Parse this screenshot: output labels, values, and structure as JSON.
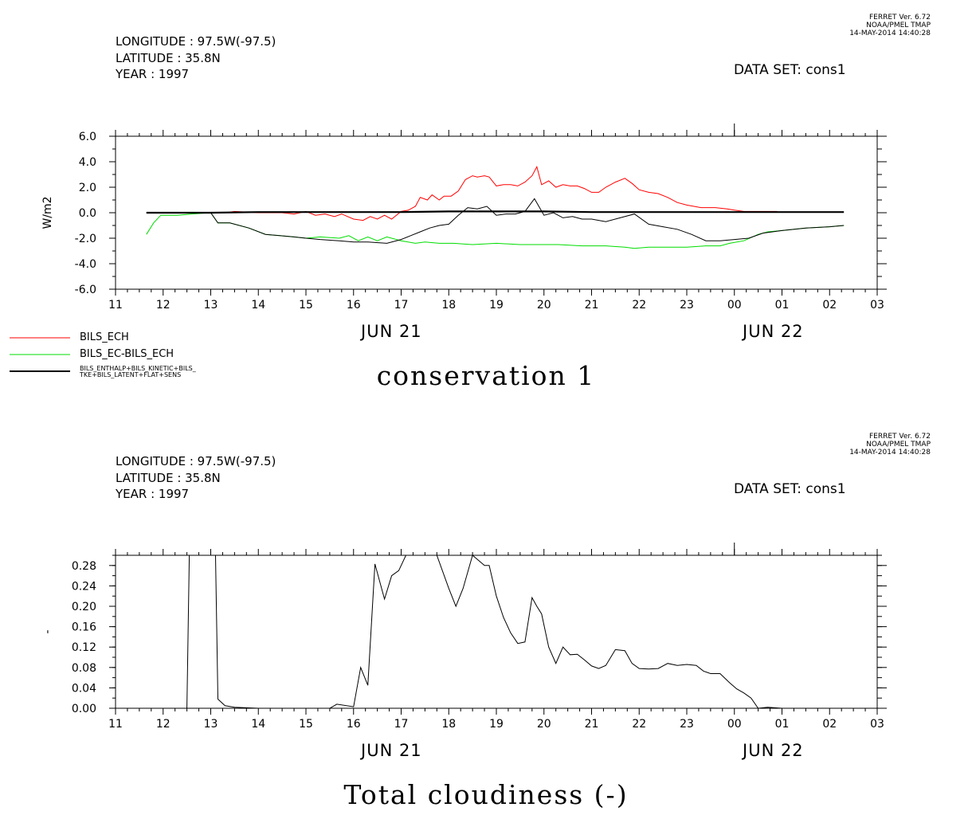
{
  "panels": [
    {
      "stamp": [
        "FERRET Ver. 6.72",
        "NOAA/PMEL TMAP",
        "14-MAY-2014 14:40:28"
      ],
      "header": [
        "LONGITUDE : 97.5W(-97.5)",
        "LATITUDE : 35.8N",
        "YEAR : 1997"
      ],
      "dataset": "DATA SET: cons1",
      "date_labels": [
        "JUN 21",
        "JUN 22"
      ],
      "title": "conservation 1"
    },
    {
      "stamp": [
        "FERRET Ver. 6.72",
        "NOAA/PMEL TMAP",
        "14-MAY-2014 14:40:28"
      ],
      "header": [
        "LONGITUDE : 97.5W(-97.5)",
        "LATITUDE : 35.8N",
        "YEAR : 1997"
      ],
      "dataset": "DATA SET: cons1",
      "date_labels": [
        "JUN 21",
        "JUN 22"
      ],
      "title": "Total cloudiness (-)"
    }
  ],
  "legend": [
    {
      "label": "BILS_ECH",
      "color": "#ff0000"
    },
    {
      "label": "BILS_EC-BILS_ECH",
      "color": "#00dd00"
    },
    {
      "label": "BILS_ENTHALP+BILS_KINETIC+BILS_\nTKE+BILS_LATENT+FLAT+SENS",
      "color": "#000000"
    }
  ],
  "chart_data": [
    {
      "type": "line",
      "xlabel": "",
      "ylabel": "W/m2",
      "x_tick_labels": [
        "11",
        "12",
        "13",
        "14",
        "15",
        "16",
        "17",
        "18",
        "19",
        "20",
        "21",
        "22",
        "23",
        "00",
        "01",
        "02",
        "03"
      ],
      "xlim": [
        11,
        27
      ],
      "ylim": [
        -6,
        6
      ],
      "y_ticks": [
        "6.0",
        "4.0",
        "2.0",
        "0.0",
        "-2.0",
        "-4.0",
        "-6.0"
      ],
      "y_tick_values": [
        6,
        4,
        2,
        0,
        -2,
        -4,
        -6
      ],
      "series": [
        {
          "name": "BILS_ECH",
          "color": "#ff0000",
          "x": [
            11.65,
            11.8,
            12,
            12.5,
            13,
            13.3,
            13.5,
            14,
            14.5,
            14.75,
            15,
            15.2,
            15.4,
            15.6,
            15.75,
            16,
            16.2,
            16.35,
            16.5,
            16.65,
            16.8,
            17,
            17.15,
            17.3,
            17.4,
            17.55,
            17.65,
            17.8,
            17.9,
            18.05,
            18.2,
            18.35,
            18.5,
            18.6,
            18.75,
            18.85,
            19,
            19.15,
            19.3,
            19.45,
            19.6,
            19.75,
            19.85,
            19.95,
            20.1,
            20.25,
            20.4,
            20.55,
            20.7,
            20.85,
            21,
            21.15,
            21.3,
            21.5,
            21.7,
            21.85,
            22,
            22.2,
            22.4,
            22.6,
            22.8,
            23,
            23.3,
            23.6,
            23.85,
            24,
            24.2,
            24.4,
            24.65,
            24.9
          ],
          "y": [
            0,
            0,
            0,
            0,
            0,
            0,
            0.1,
            0,
            0,
            -0.1,
            0.1,
            -0.2,
            -0.1,
            -0.3,
            -0.1,
            -0.5,
            -0.6,
            -0.3,
            -0.5,
            -0.2,
            -0.5,
            0.1,
            0.2,
            0.5,
            1.2,
            1.0,
            1.4,
            1.0,
            1.3,
            1.3,
            1.7,
            2.6,
            2.9,
            2.8,
            2.9,
            2.8,
            2.1,
            2.2,
            2.2,
            2.1,
            2.4,
            2.9,
            3.6,
            2.2,
            2.5,
            2.0,
            2.2,
            2.1,
            2.1,
            1.9,
            1.6,
            1.6,
            2.0,
            2.4,
            2.7,
            2.3,
            1.8,
            1.6,
            1.5,
            1.2,
            0.8,
            0.6,
            0.4,
            0.4,
            0.3,
            0.2,
            0.1,
            0.1,
            0.1,
            0.1
          ]
        },
        {
          "name": "BILS_EC-BILS_ECH",
          "color": "#00dd00",
          "x": [
            11.65,
            11.8,
            11.95,
            12.3,
            12.6,
            13,
            13.15,
            13.4,
            13.8,
            14.15,
            14.45,
            14.75,
            15,
            15.3,
            15.7,
            15.9,
            16.1,
            16.3,
            16.5,
            16.7,
            17,
            17.3,
            17.5,
            17.8,
            18.1,
            18.5,
            19,
            19.5,
            19.9,
            20.3,
            20.8,
            21.3,
            21.7,
            21.9,
            22.2,
            22.6,
            23.0,
            23.4,
            23.7,
            23.9,
            24.2,
            24.5,
            24.7,
            25.0,
            25.5,
            26.0,
            26.3
          ],
          "y": [
            -1.7,
            -0.8,
            -0.2,
            -0.2,
            -0.1,
            0,
            -0.8,
            -0.8,
            -1.2,
            -1.7,
            -1.8,
            -1.9,
            -2.0,
            -1.9,
            -2.0,
            -1.8,
            -2.2,
            -1.9,
            -2.2,
            -1.9,
            -2.2,
            -2.4,
            -2.3,
            -2.4,
            -2.4,
            -2.5,
            -2.4,
            -2.5,
            -2.5,
            -2.5,
            -2.6,
            -2.6,
            -2.7,
            -2.8,
            -2.7,
            -2.7,
            -2.7,
            -2.6,
            -2.6,
            -2.4,
            -2.2,
            -1.7,
            -1.5,
            -1.4,
            -1.2,
            -1.1,
            -1.0
          ]
        },
        {
          "name": "BILS_ENTHALP+BILS_KINETIC+BILS_\nTKE+BILS_LATENT+FLAT+SENS",
          "color": "#000000",
          "x": [
            11.65,
            12,
            12.5,
            13,
            13.15,
            13.4,
            13.8,
            14.15,
            14.45,
            14.75,
            15,
            15.3,
            15.7,
            16,
            16.3,
            16.7,
            17,
            17.2,
            17.4,
            17.6,
            17.8,
            18,
            18.2,
            18.4,
            18.6,
            18.8,
            19,
            19.2,
            19.4,
            19.6,
            19.8,
            20,
            20.2,
            20.4,
            20.6,
            20.8,
            21,
            21.3,
            21.6,
            21.9,
            22.2,
            22.5,
            22.8,
            23.1,
            23.4,
            23.7,
            24,
            24.3,
            24.6,
            25,
            25.5,
            26,
            26.3
          ],
          "y": [
            0,
            0,
            0,
            0,
            -0.8,
            -0.8,
            -1.2,
            -1.7,
            -1.8,
            -1.9,
            -2.0,
            -2.1,
            -2.2,
            -2.3,
            -2.3,
            -2.4,
            -2.1,
            -1.8,
            -1.5,
            -1.2,
            -1.0,
            -0.9,
            -0.2,
            0.4,
            0.3,
            0.5,
            -0.2,
            -0.1,
            -0.1,
            0.1,
            1.1,
            -0.2,
            0.0,
            -0.4,
            -0.3,
            -0.5,
            -0.5,
            -0.7,
            -0.4,
            -0.1,
            -0.9,
            -1.1,
            -1.3,
            -1.7,
            -2.2,
            -2.2,
            -2.1,
            -2.0,
            -1.6,
            -1.4,
            -1.2,
            -1.1,
            -1.0
          ]
        },
        {
          "name": "",
          "color": "#000000",
          "x": [
            11.65,
            13,
            14,
            15,
            16,
            17,
            18,
            19,
            20,
            21,
            22,
            23,
            24,
            25,
            26,
            26.3
          ],
          "y": [
            0,
            0,
            0.05,
            0.05,
            0.05,
            0.05,
            0.1,
            0.1,
            0.1,
            0.05,
            0.05,
            0.05,
            0.05,
            0.05,
            0.05,
            0.05
          ]
        }
      ]
    },
    {
      "type": "line",
      "xlabel": "",
      "ylabel": "-",
      "x_tick_labels": [
        "11",
        "12",
        "13",
        "14",
        "15",
        "16",
        "17",
        "18",
        "19",
        "20",
        "21",
        "22",
        "23",
        "00",
        "01",
        "02",
        "03"
      ],
      "xlim": [
        11,
        27
      ],
      "ylim": [
        0,
        0.3
      ],
      "y_ticks": [
        "0.28",
        "0.24",
        "0.20",
        "0.16",
        "0.12",
        "0.08",
        "0.04",
        "0.00"
      ],
      "y_tick_values": [
        0.28,
        0.24,
        0.2,
        0.16,
        0.12,
        0.08,
        0.04,
        0.0
      ],
      "series": [
        {
          "name": "",
          "color": "#000000",
          "x": [
            11.65,
            12.5,
            12.55,
            13.1,
            13.15,
            13.3,
            13.5,
            14,
            15,
            15.5,
            15.65,
            16,
            16.15,
            16.3,
            16.45,
            16.65,
            16.8,
            16.95,
            17.1,
            17.25,
            17.45,
            17.75,
            18,
            18.15,
            18.3,
            18.5,
            18.75,
            18.85,
            19.0,
            19.15,
            19.3,
            19.45,
            19.6,
            19.75,
            19.85,
            19.95,
            20.1,
            20.25,
            20.4,
            20.55,
            20.7,
            20.85,
            21,
            21.15,
            21.3,
            21.5,
            21.7,
            21.85,
            22,
            22.2,
            22.4,
            22.6,
            22.8,
            23,
            23.2,
            23.35,
            23.5,
            23.7,
            23.9,
            24.05,
            24.2,
            24.35,
            24.5,
            24.7,
            25,
            26,
            26.3
          ],
          "y": [
            0,
            0,
            0.3,
            0.3,
            0.018,
            0.005,
            0.002,
            0,
            0,
            0,
            0.008,
            0.003,
            0.08,
            0.045,
            0.283,
            0.214,
            0.26,
            0.27,
            0.3,
            0.3,
            0.3,
            0.3,
            0.235,
            0.2,
            0.235,
            0.3,
            0.28,
            0.28,
            0.22,
            0.178,
            0.148,
            0.127,
            0.13,
            0.217,
            0.2,
            0.185,
            0.12,
            0.088,
            0.12,
            0.105,
            0.106,
            0.095,
            0.083,
            0.078,
            0.084,
            0.115,
            0.113,
            0.088,
            0.078,
            0.077,
            0.078,
            0.088,
            0.084,
            0.086,
            0.084,
            0.073,
            0.068,
            0.068,
            0.05,
            0.038,
            0.03,
            0.02,
            0,
            0.002,
            0,
            0,
            0
          ]
        }
      ]
    }
  ]
}
